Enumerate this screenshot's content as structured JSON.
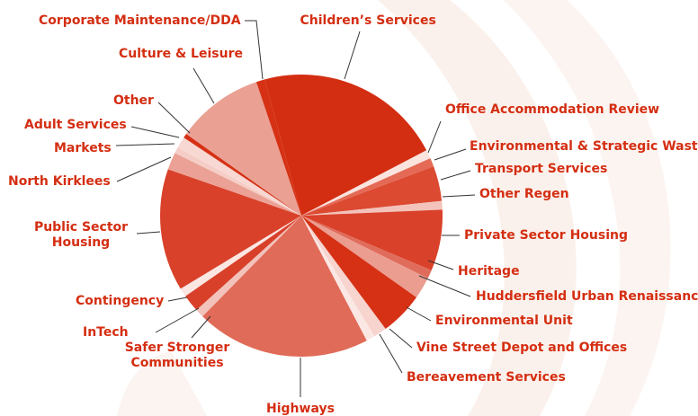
{
  "chart_data": {
    "type": "pie",
    "categories": [
      "Children’s Services",
      "Office Accommodation Review",
      "Environmental & Strategic Waste",
      "Transport Services",
      "Other Regen",
      "Private Sector Housing",
      "Heritage",
      "Huddersfield Urban Renaissance",
      "Environmental Unit",
      "Vine Street Depot and Offices",
      "Bereavement Services",
      "Highways",
      "Safer Stronger Communities",
      "InTech",
      "Contingency",
      "Public Sector Housing",
      "North Kirklees",
      "Markets",
      "Adult Services",
      "Other",
      "Culture & Leisure",
      "Corporate Maintenance/DDA"
    ],
    "values": [
      21.5,
      1,
      1,
      4,
      1,
      7,
      1,
      2.5,
      5,
      1.5,
      1,
      20,
      1,
      2,
      1,
      14,
      2,
      0.7,
      1.3,
      0.5,
      10,
      1
    ],
    "colors": [
      "#d42e12",
      "#fbe3de",
      "#e46a56",
      "#dc4a32",
      "#f3c3bb",
      "#d9412a",
      "#e06c5b",
      "#eb9d90",
      "#d63115",
      "#f7d4ce",
      "#fbe8e4",
      "#e06b58",
      "#f2c2bb",
      "#d8402a",
      "#fbe6e2",
      "#d9412a",
      "#eba195",
      "#f5cdc6",
      "#f8d8d2",
      "#d63115",
      "#eaa093",
      "#d63115"
    ]
  }
}
